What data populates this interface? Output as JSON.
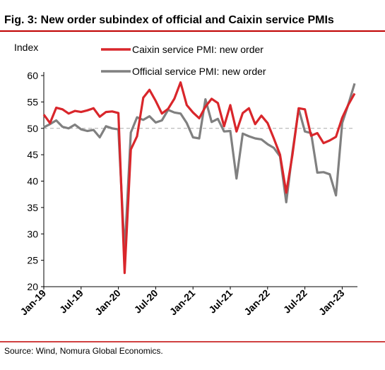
{
  "chart_data": {
    "type": "line",
    "title": "Fig. 3: New order subindex of official and Caixin service PMIs",
    "y_label": "Index",
    "source": "Source: Wind, Nomura Global Economics.",
    "categories": [
      "Jan-19",
      null,
      null,
      null,
      null,
      null,
      "Jul-19",
      null,
      null,
      null,
      null,
      null,
      "Jan-20",
      null,
      null,
      null,
      null,
      null,
      "Jul-20",
      null,
      null,
      null,
      null,
      null,
      "Jan-21",
      null,
      null,
      null,
      null,
      null,
      "Jul-21",
      null,
      null,
      null,
      null,
      null,
      "Jan-22",
      null,
      null,
      null,
      null,
      null,
      "Jul-22",
      null,
      null,
      null,
      null,
      null,
      "Jan-23",
      null,
      null
    ],
    "series": [
      {
        "name": "Caixin service PMI: new order",
        "color": "#d9262b",
        "values": [
          52.6,
          51.0,
          53.9,
          53.6,
          52.8,
          53.3,
          53.1,
          53.4,
          53.8,
          52.2,
          53.1,
          53.2,
          52.9,
          22.6,
          46.0,
          48.5,
          55.8,
          57.3,
          55.2,
          52.8,
          53.7,
          55.6,
          58.7,
          54.4,
          53.0,
          51.9,
          54.1,
          55.6,
          54.8,
          50.4,
          54.4,
          49.4,
          52.9,
          53.8,
          50.8,
          52.4,
          51.0,
          48.1,
          45.0,
          37.8,
          45.0,
          53.8,
          53.6,
          48.6,
          49.1,
          47.2,
          47.7,
          48.4,
          52.0,
          54.5,
          56.6
        ]
      },
      {
        "name": "Official service PMI: new order",
        "color": "#808080",
        "values": [
          50.2,
          50.8,
          51.5,
          50.3,
          50.0,
          50.7,
          49.8,
          49.5,
          49.7,
          48.3,
          50.4,
          50.0,
          49.8,
          26.5,
          49.2,
          52.1,
          51.6,
          52.3,
          51.1,
          51.5,
          53.5,
          53.0,
          52.8,
          51.0,
          48.3,
          48.1,
          55.5,
          51.2,
          51.8,
          49.4,
          49.5,
          40.5,
          49.0,
          48.5,
          48.1,
          47.9,
          47.0,
          46.3,
          44.7,
          36.0,
          45.5,
          53.7,
          49.4,
          49.1,
          41.6,
          41.7,
          41.3,
          37.3,
          51.0,
          54.6,
          58.5
        ]
      }
    ],
    "ylim": [
      20,
      60
    ],
    "yticks": [
      20,
      25,
      30,
      35,
      40,
      45,
      50,
      55,
      60
    ],
    "reference_line": 50,
    "grid": false
  }
}
